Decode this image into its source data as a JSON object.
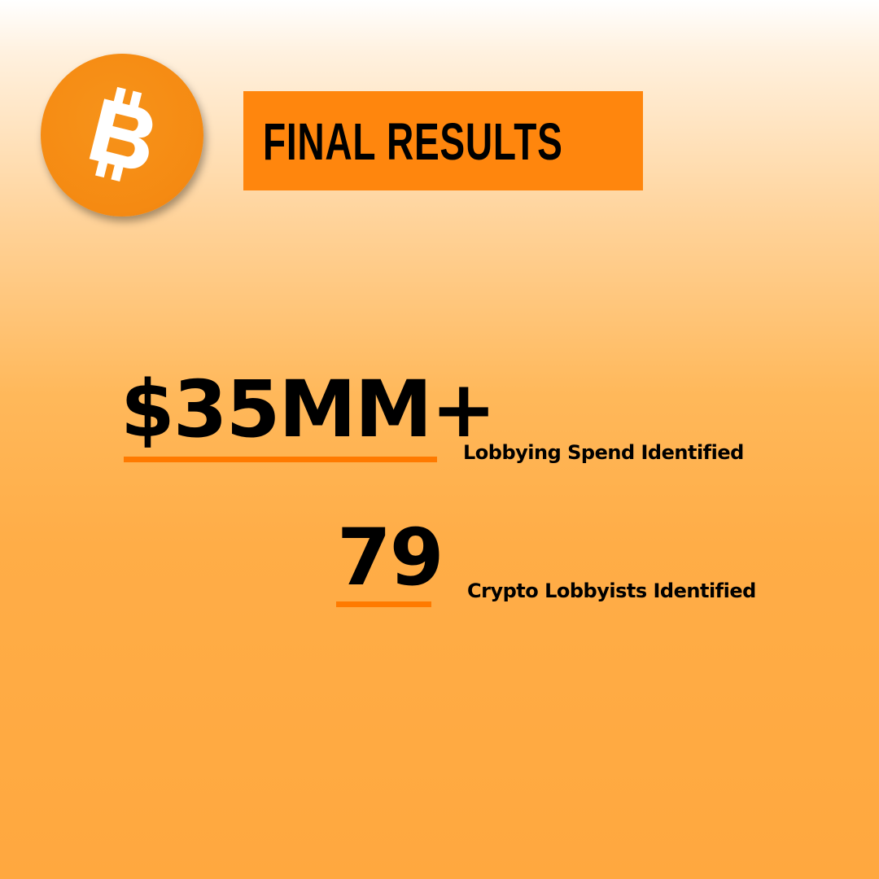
{
  "logo": {
    "icon": "bitcoin-icon",
    "color": "#f7931a"
  },
  "title": {
    "text": "FINAL RESULTS",
    "background": "#ff860d"
  },
  "stats": [
    {
      "value": "$35MM+",
      "label": "Lobbying Spend Identified"
    },
    {
      "value": "79",
      "label": "Crypto Lobbyists Identified"
    }
  ],
  "colors": {
    "accent": "#ff7a00",
    "text": "#000000"
  }
}
